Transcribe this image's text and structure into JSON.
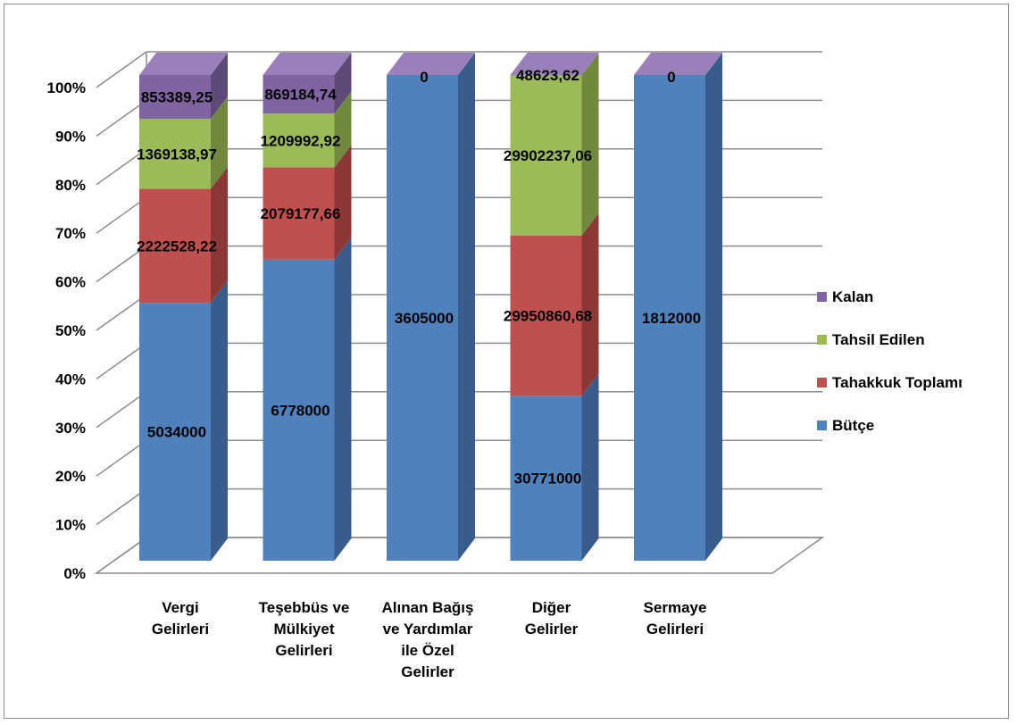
{
  "chart_data": {
    "type": "bar",
    "stacked": "percent",
    "three_d": true,
    "categories": [
      "Vergi Gelirleri",
      "Teşebbüs ve Mülkiyet Gelirleri",
      "Alınan Bağış ve Yardımlar ile Özel Gelirler",
      "Diğer Gelirler",
      "Sermaye Gelirleri"
    ],
    "category_lines": [
      [
        "Vergi",
        "Gelirleri"
      ],
      [
        "Teşebbüs ve",
        "Mülkiyet",
        "Gelirleri"
      ],
      [
        "Alınan Bağış",
        "ve Yardımlar",
        "ile Özel",
        "Gelirler"
      ],
      [
        "Diğer",
        "Gelirler"
      ],
      [
        "Sermaye",
        "Gelirleri"
      ]
    ],
    "series": [
      {
        "name": "Bütçe",
        "color": "#4F81BD",
        "side": "#385D8A",
        "top": "#6F97CC",
        "values": [
          5034000,
          6778000,
          3605000,
          30771000,
          1812000
        ],
        "labels": [
          "5034000",
          "6778000",
          "3605000",
          "30771000",
          "1812000"
        ]
      },
      {
        "name": "Tahakkuk Toplamı",
        "color": "#C0504D",
        "side": "#8C3836",
        "top": "#D0706D",
        "values": [
          2222528.22,
          2079177.66,
          0,
          29950860.68,
          0
        ],
        "labels": [
          "2222528,22",
          "2079177,66",
          "",
          "29950860,68",
          ""
        ]
      },
      {
        "name": "Tahsil Edilen",
        "color": "#9BBB59",
        "side": "#71893F",
        "top": "#B2CC7A",
        "values": [
          1369138.97,
          1209992.92,
          0,
          29902237.06,
          0
        ],
        "labels": [
          "1369138,97",
          "1209992,92",
          "",
          "29902237,06",
          ""
        ]
      },
      {
        "name": "Kalan",
        "color": "#8064A2",
        "side": "#5E4A78",
        "top": "#9A80BA",
        "values": [
          853389.25,
          869184.74,
          0,
          48623.62,
          0
        ],
        "labels": [
          "853389,25",
          "869184,74",
          "0",
          "48623,62",
          "0"
        ]
      }
    ],
    "y_ticks": [
      "0%",
      "10%",
      "20%",
      "30%",
      "40%",
      "50%",
      "60%",
      "70%",
      "80%",
      "90%",
      "100%"
    ],
    "ylim": [
      0,
      100
    ],
    "grid": true,
    "legend_position": "right"
  }
}
